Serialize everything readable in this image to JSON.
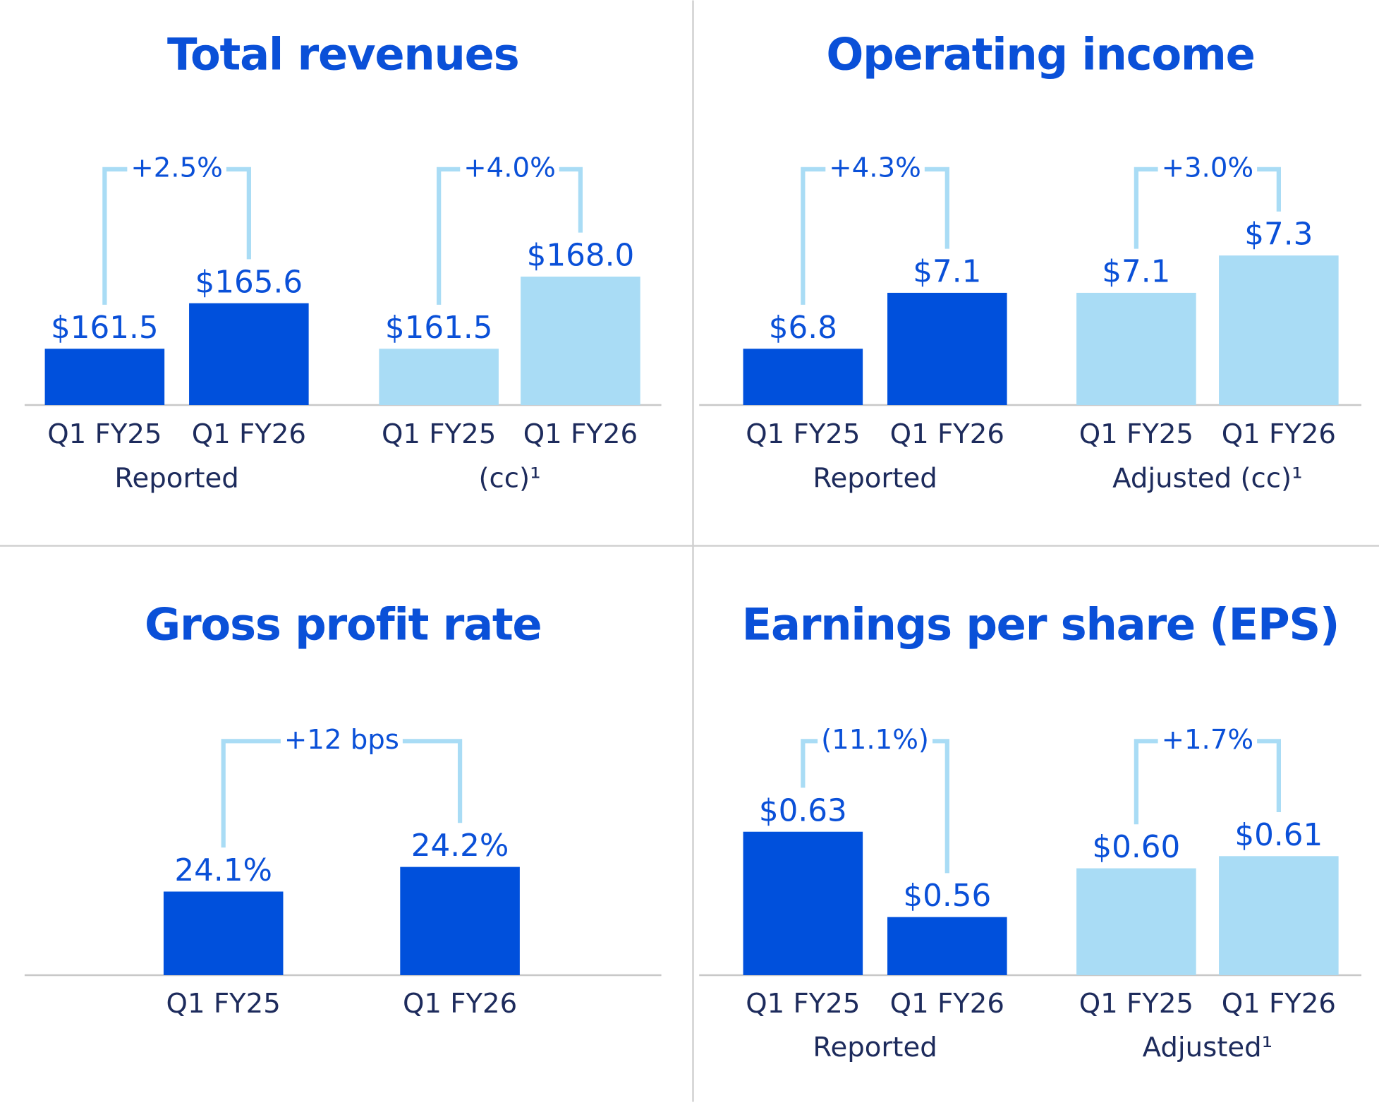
{
  "chart_data": [
    {
      "type": "bar",
      "title": "Total revenues",
      "groups": [
        {
          "label": "Reported",
          "change": "+2.5%",
          "color": "#0050dc",
          "categories": [
            "Q1 FY25",
            "Q1 FY26"
          ],
          "values": [
            161.5,
            165.6
          ],
          "value_labels": [
            "$161.5",
            "$165.6"
          ]
        },
        {
          "label": "(cc)¹",
          "change": "+4.0%",
          "color": "#a9dcf5",
          "categories": [
            "Q1 FY25",
            "Q1 FY26"
          ],
          "values": [
            161.5,
            168.0
          ],
          "value_labels": [
            "$161.5",
            "$168.0"
          ]
        }
      ]
    },
    {
      "type": "bar",
      "title": "Operating income",
      "groups": [
        {
          "label": "Reported",
          "change": "+4.3%",
          "color": "#0050dc",
          "categories": [
            "Q1 FY25",
            "Q1 FY26"
          ],
          "values": [
            6.8,
            7.1
          ],
          "value_labels": [
            "$6.8",
            "$7.1"
          ]
        },
        {
          "label": "Adjusted (cc)¹",
          "change": "+3.0%",
          "color": "#a9dcf5",
          "categories": [
            "Q1 FY25",
            "Q1 FY26"
          ],
          "values": [
            7.1,
            7.3
          ],
          "value_labels": [
            "$7.1",
            "$7.3"
          ]
        }
      ]
    },
    {
      "type": "bar",
      "title": "Gross profit rate",
      "groups": [
        {
          "change": "+12 bps",
          "color": "#0050dc",
          "categories": [
            "Q1 FY25",
            "Q1 FY26"
          ],
          "values": [
            24.1,
            24.2
          ],
          "value_labels": [
            "24.1%",
            "24.2%"
          ]
        }
      ]
    },
    {
      "type": "bar",
      "title": "Earnings per share (EPS)",
      "groups": [
        {
          "label": "Reported",
          "change": "(11.1%)",
          "color": "#0050dc",
          "categories": [
            "Q1 FY25",
            "Q1 FY26"
          ],
          "values": [
            0.63,
            0.56
          ],
          "value_labels": [
            "$0.63",
            "$0.56"
          ]
        },
        {
          "label": "Adjusted¹",
          "change": "+1.7%",
          "color": "#a9dcf5",
          "categories": [
            "Q1 FY25",
            "Q1 FY26"
          ],
          "values": [
            0.6,
            0.61
          ],
          "value_labels": [
            "$0.60",
            "$0.61"
          ]
        }
      ]
    }
  ]
}
